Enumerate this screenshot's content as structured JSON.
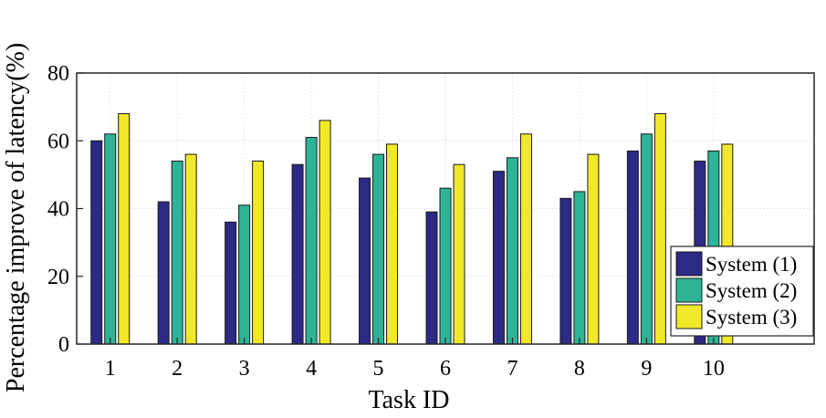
{
  "chart_data": {
    "type": "bar",
    "title": "",
    "xlabel": "Task ID",
    "ylabel": "Percentage improve of latency(%)",
    "categories": [
      "1",
      "2",
      "3",
      "4",
      "5",
      "6",
      "7",
      "8",
      "9",
      "10"
    ],
    "x_range": [
      0.5,
      11.5
    ],
    "ylim": [
      0,
      80
    ],
    "yticks": [
      0,
      20,
      40,
      60,
      80
    ],
    "grid": true,
    "legend_position": "bottom-right",
    "series": [
      {
        "name": "System (1)",
        "color": "#2b2a85",
        "values": [
          60,
          42,
          36,
          53,
          49,
          39,
          51,
          43,
          57,
          54
        ]
      },
      {
        "name": "System (2)",
        "color": "#2db497",
        "values": [
          62,
          54,
          41,
          61,
          56,
          46,
          55,
          45,
          62,
          57
        ]
      },
      {
        "name": "System (3)",
        "color": "#f2e82a",
        "values": [
          68,
          56,
          54,
          66,
          59,
          53,
          62,
          56,
          68,
          59
        ]
      }
    ]
  }
}
